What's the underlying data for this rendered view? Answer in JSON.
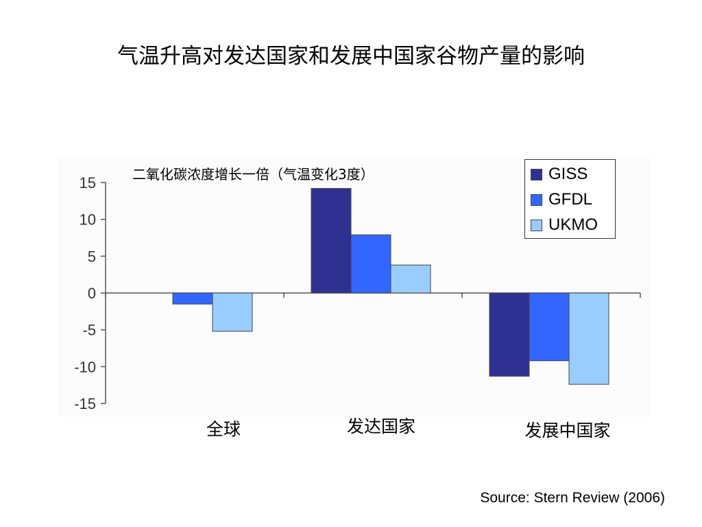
{
  "slide": {
    "title": "气温升高对发达国家和发展中国家谷物产量的影响",
    "source": "Source: Stern Review (2006)"
  },
  "chart_data": {
    "type": "bar",
    "title": "二氧化碳浓度增长一倍（气温变化3度）",
    "categories": [
      "全球",
      "发达国家",
      "发展中国家"
    ],
    "series": [
      {
        "name": "GISS",
        "color": "#2e3192",
        "values": [
          0,
          14.2,
          -11.3
        ]
      },
      {
        "name": "GFDL",
        "color": "#3366ff",
        "values": [
          -1.5,
          7.9,
          -9.2
        ]
      },
      {
        "name": "UKMO",
        "color": "#99ccff",
        "values": [
          -5.2,
          3.8,
          -12.4
        ]
      }
    ],
    "ylim": [
      -15,
      15
    ],
    "yticks": [
      15,
      10,
      5,
      0,
      -5,
      -10,
      -15
    ],
    "grid": false,
    "legend_position": "top-right"
  }
}
